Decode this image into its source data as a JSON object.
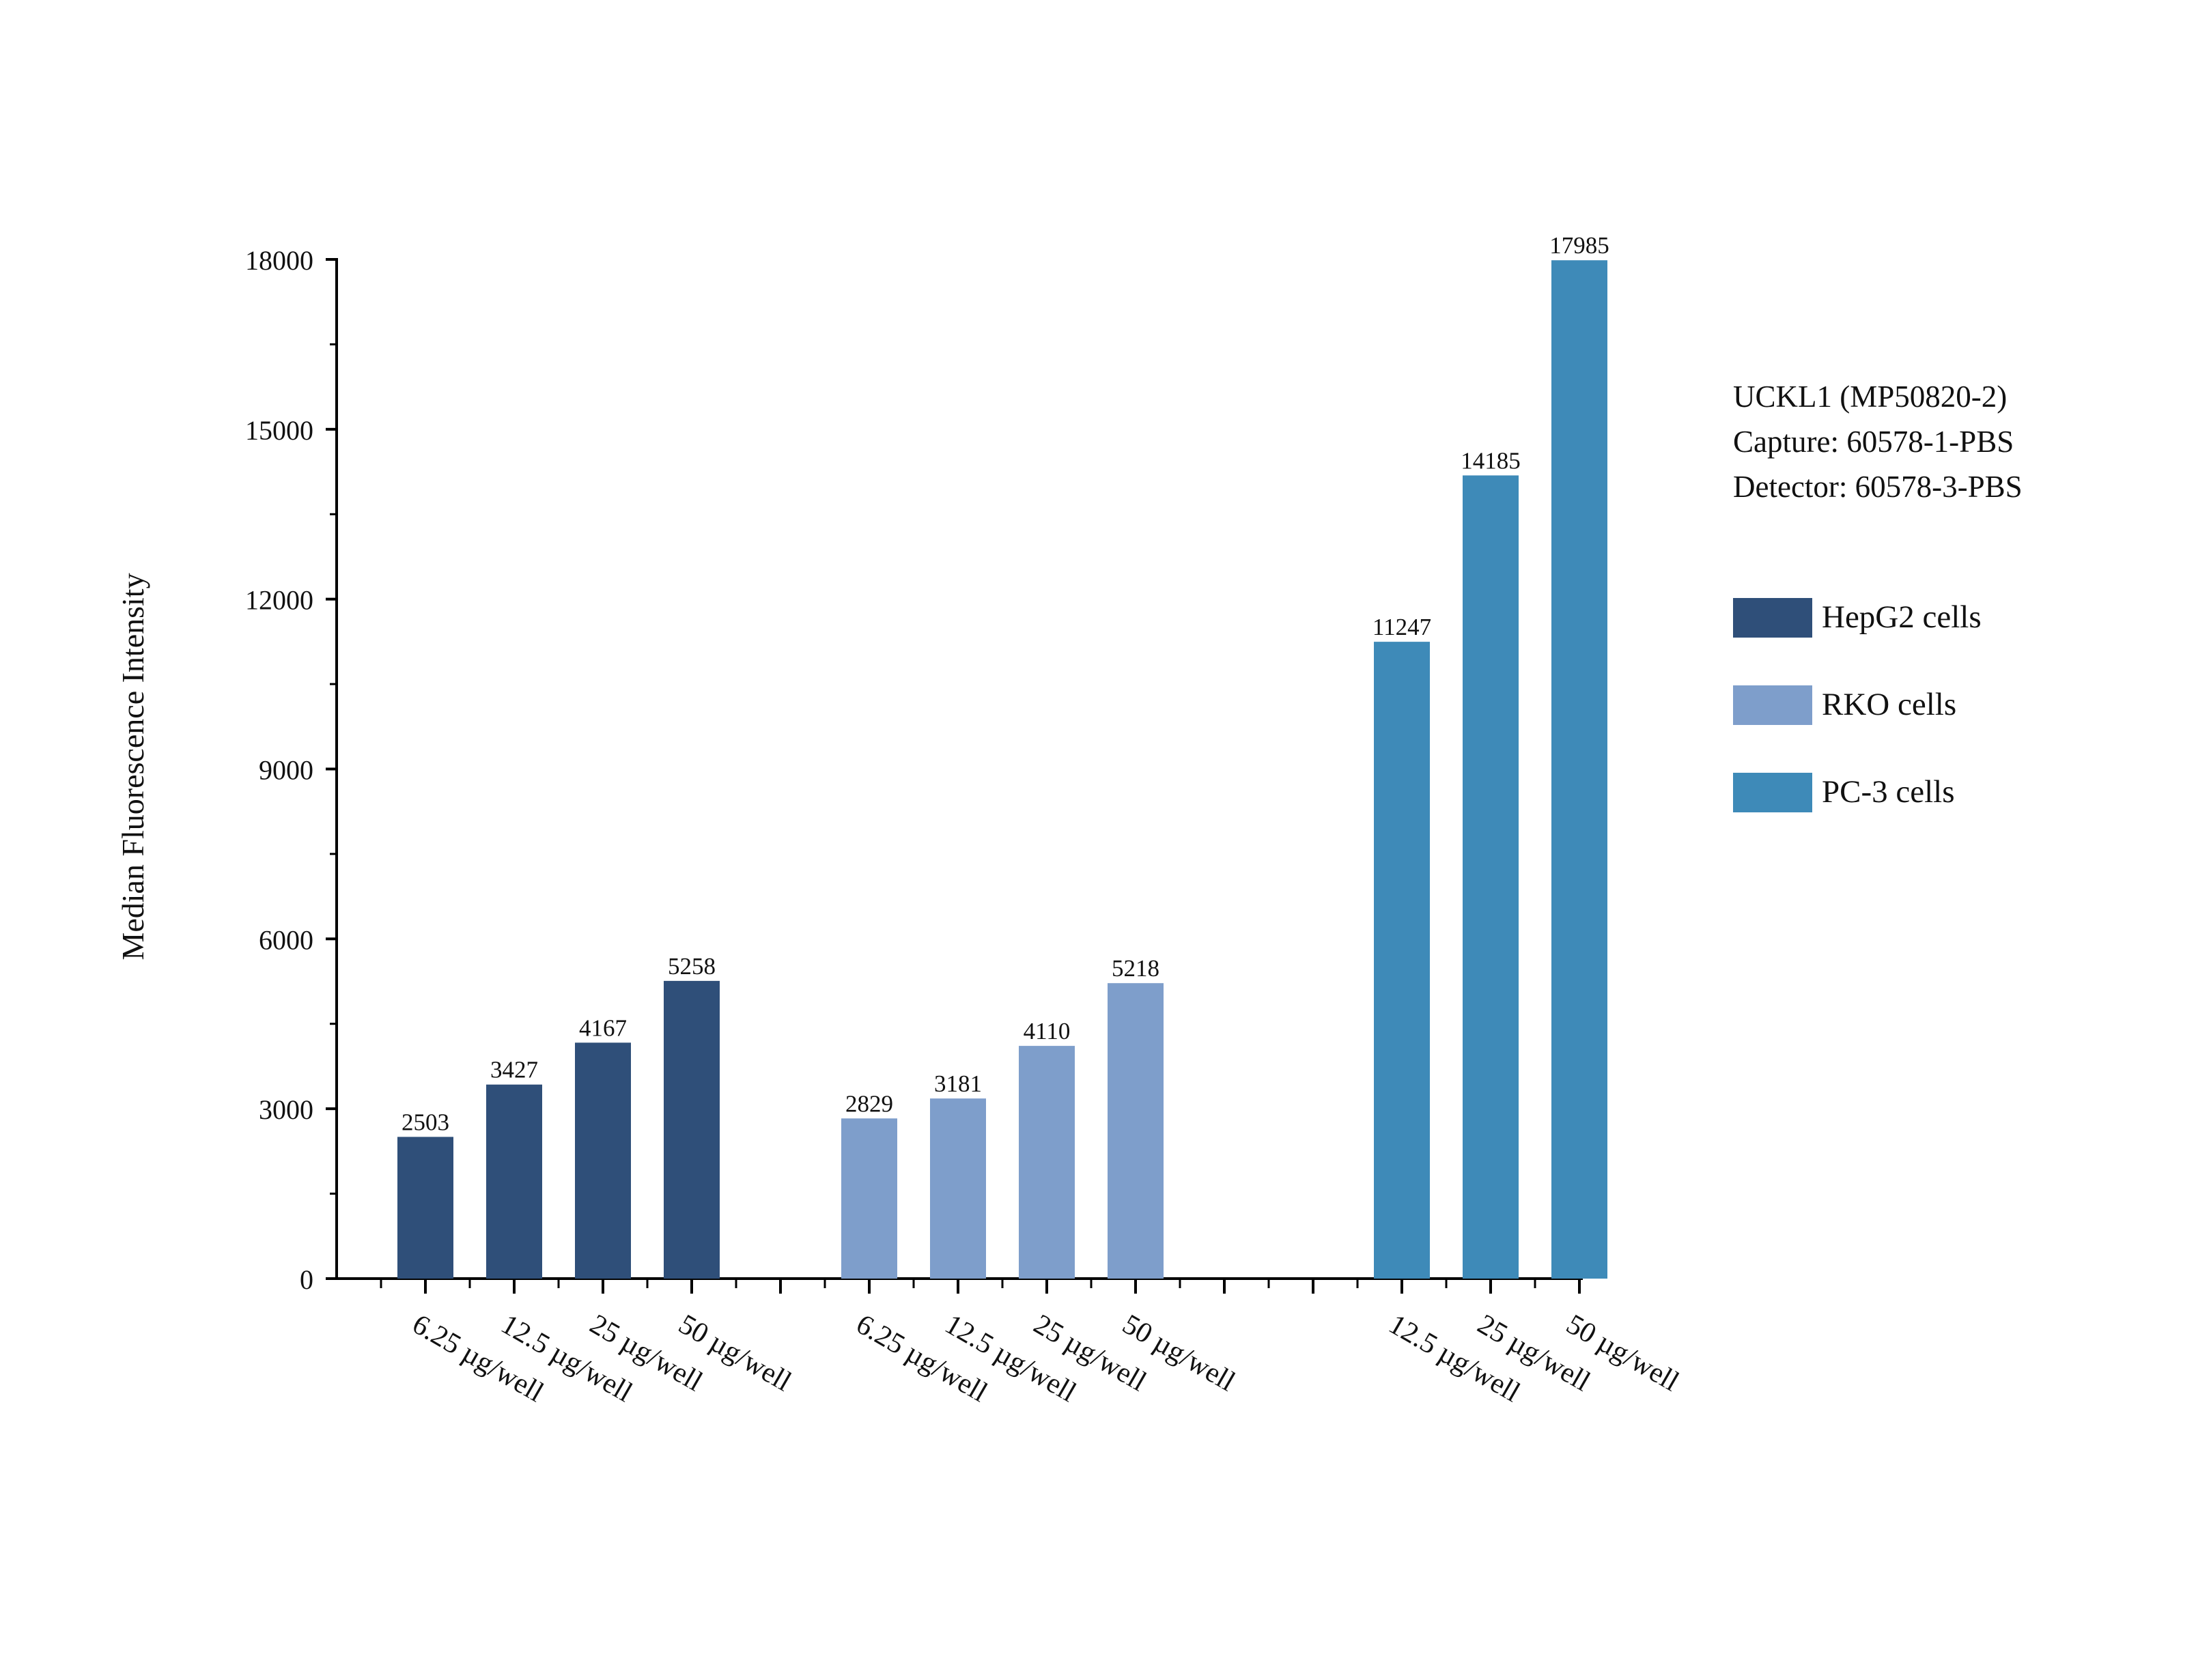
{
  "chart_data": {
    "type": "bar",
    "ylabel": "Median Fluorescence Intensity",
    "ylim": [
      0,
      18000
    ],
    "yticks": [
      0,
      3000,
      6000,
      9000,
      12000,
      15000,
      18000
    ],
    "grid": false,
    "legend_position": "right",
    "groups": [
      {
        "name": "HepG2 cells",
        "color": "#2f4f79",
        "categories": [
          "6.25 µg/well",
          "12.5 µg/well",
          "25 µg/well",
          "50 µg/well"
        ],
        "values": [
          2503,
          3427,
          4167,
          5258
        ]
      },
      {
        "name": "RKO cells",
        "color": "#7e9ecb",
        "categories": [
          "6.25 µg/well",
          "12.5 µg/well",
          "25 µg/well",
          "50 µg/well"
        ],
        "values": [
          2829,
          3181,
          4110,
          5218
        ]
      },
      {
        "name": "PC-3 cells",
        "color": "#3e8ab8",
        "categories": [
          "12.5 µg/well",
          "25 µg/well",
          "50 µg/well"
        ],
        "values": [
          11247,
          14185,
          17985
        ]
      }
    ]
  },
  "info": {
    "line1": "UCKL1 (MP50820-2)",
    "line2": "Capture: 60578-1-PBS",
    "line3": "Detector: 60578-3-PBS"
  },
  "legend": [
    {
      "label": "HepG2 cells",
      "color": "#2f4f79"
    },
    {
      "label": "RKO cells",
      "color": "#7e9ecb"
    },
    {
      "label": "PC-3 cells",
      "color": "#3e8ab8"
    }
  ]
}
